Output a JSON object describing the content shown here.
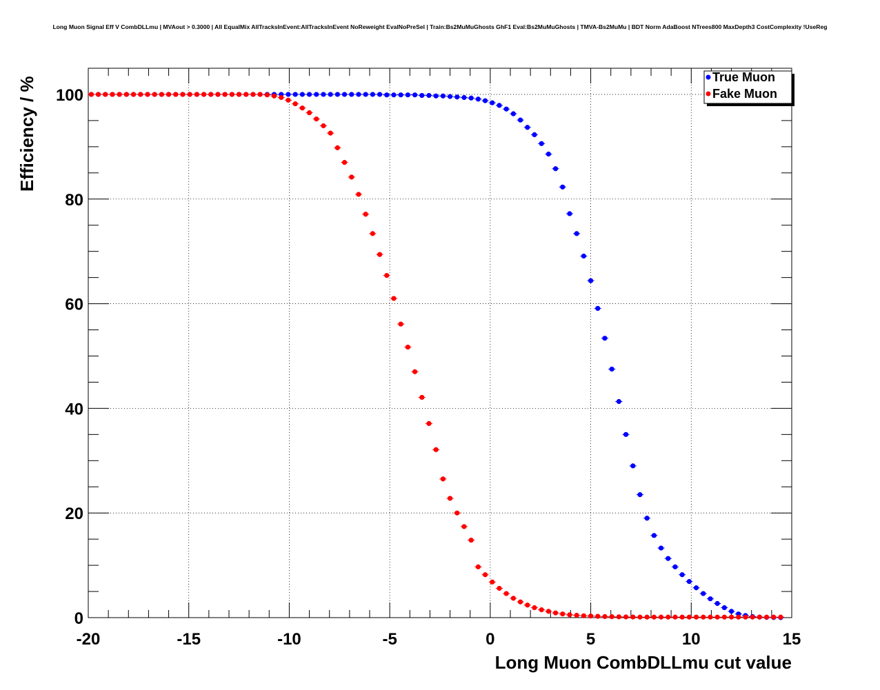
{
  "chart_data": {
    "type": "scatter",
    "title": "Long Muon Signal Eff V CombDLLmu | MVAout > 0.3000 | All EqualMix AllTracksInEvent:AllTracksInEvent NoReweight EvalNoPreSel | Train:Bs2MuMuGhosts GhF1 Eval:Bs2MuMuGhosts | TMVA-Bs2MuMu | BDT Norm AdaBoost NTrees800 MaxDepth3 CostComplexity !UseReg",
    "xlabel": "Long Muon CombDLLmu cut value",
    "ylabel": "Efficiency / %",
    "xlim": [
      -20,
      15
    ],
    "ylim": [
      0,
      105
    ],
    "xticks": [
      -20,
      -15,
      -10,
      -5,
      0,
      5,
      10,
      15
    ],
    "xtick_labels": [
      "-20",
      "-15",
      "-10",
      "-5",
      "0",
      "5",
      "10",
      "15"
    ],
    "yticks": [
      0,
      20,
      40,
      60,
      80,
      100
    ],
    "ytick_labels": [
      "0",
      "20",
      "40",
      "60",
      "80",
      "100"
    ],
    "grid": true,
    "legend_position": "top-right",
    "x": [
      -19.85,
      -19.5,
      -19.15,
      -18.8,
      -18.45,
      -18.1,
      -17.75,
      -17.4,
      -17.05,
      -16.7,
      -16.35,
      -16.0,
      -15.65,
      -15.3,
      -14.95,
      -14.6,
      -14.25,
      -13.9,
      -13.55,
      -13.2,
      -12.85,
      -12.5,
      -12.15,
      -11.8,
      -11.45,
      -11.1,
      -10.75,
      -10.4,
      -10.05,
      -9.7,
      -9.35,
      -9.0,
      -8.65,
      -8.3,
      -7.95,
      -7.6,
      -7.25,
      -6.9,
      -6.55,
      -6.2,
      -5.85,
      -5.5,
      -5.15,
      -4.8,
      -4.45,
      -4.1,
      -3.75,
      -3.4,
      -3.05,
      -2.7,
      -2.35,
      -2.0,
      -1.65,
      -1.3,
      -0.95,
      -0.6,
      -0.25,
      0.1,
      0.45,
      0.8,
      1.15,
      1.5,
      1.85,
      2.2,
      2.55,
      2.9,
      3.25,
      3.6,
      3.95,
      4.3,
      4.65,
      5.0,
      5.35,
      5.7,
      6.05,
      6.4,
      6.75,
      7.1,
      7.45,
      7.8,
      8.15,
      8.5,
      8.85,
      9.2,
      9.55,
      9.9,
      10.25,
      10.6,
      10.95,
      11.3,
      11.65,
      12.0,
      12.35,
      12.7,
      13.05,
      13.4,
      13.75,
      14.1,
      14.45
    ],
    "series": [
      {
        "name": "True Muon",
        "color": "#0000ff",
        "values": [
          100,
          100,
          100,
          100,
          100,
          100,
          100,
          100,
          100,
          100,
          100,
          100,
          100,
          100,
          100,
          100,
          100,
          100,
          100,
          100,
          100,
          100,
          100,
          100,
          100,
          100,
          100,
          100,
          100,
          100,
          100,
          100,
          100,
          100,
          100,
          100,
          100,
          100,
          100,
          100,
          100,
          100,
          99.9,
          99.9,
          99.9,
          99.9,
          99.9,
          99.8,
          99.8,
          99.7,
          99.7,
          99.6,
          99.5,
          99.4,
          99.3,
          99.1,
          98.8,
          98.4,
          97.9,
          97.2,
          96.3,
          95.1,
          93.7,
          92.3,
          90.6,
          88.6,
          85.8,
          82.3,
          77.2,
          73.4,
          69.1,
          64.4,
          59.1,
          53.4,
          47.5,
          41.3,
          35.0,
          29.0,
          23.5,
          19.0,
          15.7,
          13.3,
          11.3,
          9.7,
          8.2,
          6.9,
          5.7,
          4.6,
          3.6,
          2.7,
          1.9,
          1.2,
          0.7,
          0.4,
          0.2,
          0.1,
          0.05,
          0.02,
          0.0
        ]
      },
      {
        "name": "Fake Muon",
        "color": "#ff0000",
        "values": [
          100,
          100,
          100,
          100,
          100,
          100,
          100,
          100,
          100,
          100,
          100,
          100,
          100,
          100,
          100,
          100,
          100,
          100,
          100,
          100,
          100,
          100,
          100,
          100,
          100,
          99.9,
          99.7,
          99.4,
          98.9,
          98.2,
          97.4,
          96.5,
          95.3,
          94.0,
          92.6,
          89.8,
          87.0,
          84.2,
          80.9,
          77.1,
          73.4,
          69.4,
          65.4,
          61.0,
          56.1,
          51.7,
          47.0,
          42.1,
          37.1,
          32.1,
          26.5,
          22.8,
          20.0,
          17.4,
          14.8,
          9.7,
          8.2,
          6.8,
          5.6,
          4.6,
          3.7,
          3.0,
          2.4,
          1.9,
          1.5,
          1.2,
          0.9,
          0.7,
          0.55,
          0.45,
          0.35,
          0.3,
          0.25,
          0.2,
          0.18,
          0.15,
          0.13,
          0.12,
          0.1,
          0.1,
          0.1,
          0.1,
          0.1,
          0.1,
          0.1,
          0.1,
          0.1,
          0.1,
          0.1,
          0.1,
          0.1,
          0.1,
          0.1,
          0.1,
          0.1,
          0.1,
          0.1,
          0.1,
          0.1
        ]
      }
    ]
  }
}
